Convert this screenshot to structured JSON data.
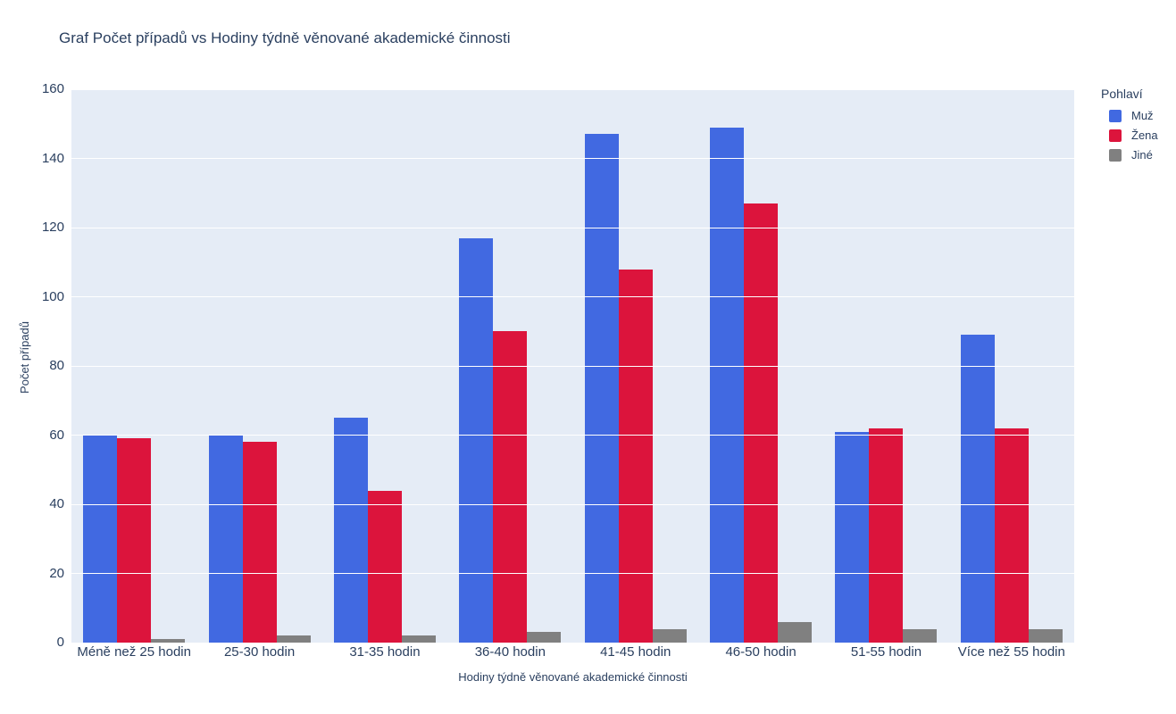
{
  "chart_data": {
    "type": "bar",
    "title": "Graf Počet případů vs Hodiny týdně věnované akademické činnosti",
    "xlabel": "Hodiny týdně věnované akademické činnosti",
    "ylabel": "Počet případů",
    "legend_title": "Pohlaví",
    "legend_position": "right",
    "grid": true,
    "categories": [
      "Méně než 25 hodin",
      "25-30 hodin",
      "31-35 hodin",
      "36-40 hodin",
      "41-45 hodin",
      "46-50 hodin",
      "51-55 hodin",
      "Více než 55 hodin"
    ],
    "series": [
      {
        "name": "Muž",
        "color": "#4169E1",
        "values": [
          60,
          60,
          65,
          117,
          147,
          149,
          61,
          89
        ]
      },
      {
        "name": "Žena",
        "color": "#DC143C",
        "values": [
          59,
          58,
          44,
          90,
          108,
          127,
          62,
          62
        ]
      },
      {
        "name": "Jiné",
        "color": "#808080",
        "values": [
          1,
          2,
          2,
          3,
          4,
          6,
          4,
          4
        ]
      }
    ],
    "ylim": [
      0,
      160
    ],
    "yticks": [
      0,
      20,
      40,
      60,
      80,
      100,
      120,
      140,
      160
    ],
    "colors": {
      "plot_background": "#E5ECF6",
      "gridline": "#FFFFFF",
      "text": "#2A3F5F"
    }
  }
}
